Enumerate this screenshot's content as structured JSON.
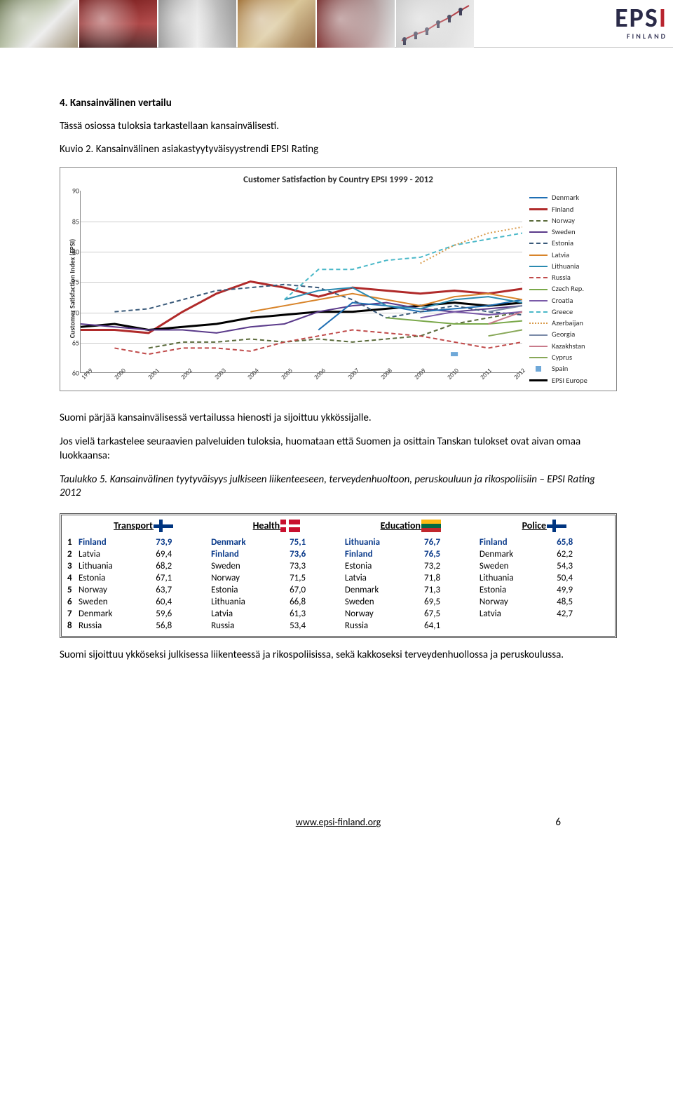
{
  "logo": {
    "letters": "EPS",
    "red_letter": "I",
    "sub": "FINLAND"
  },
  "section_heading": "4.  Kansainvälinen vertailu",
  "intro_para": "Tässä osiossa tuloksia tarkastellaan kansainvälisesti.",
  "kuvio_line": "Kuvio 2. Kansainvälinen asiakastyytyväisyystrendi EPSI Rating",
  "chart": {
    "title": "Customer Satisfaction by Country EPSI 1999 - 2012",
    "ylabel": "Customer Satisfaction Index (EPSI)",
    "ylim": [
      60,
      90
    ],
    "ytick_step": 5,
    "years": [
      "1999",
      "2000",
      "2001",
      "2002",
      "2003",
      "2004",
      "2005",
      "2006",
      "2007",
      "2008",
      "2009",
      "2010",
      "2011",
      "2012"
    ],
    "grid_color": "#cccccc",
    "border_color": "#888888",
    "legend": [
      {
        "label": "Denmark",
        "color": "#1f6fb4",
        "style": "solid",
        "width": 2
      },
      {
        "label": "Finland",
        "color": "#b02a2a",
        "style": "solid",
        "width": 3
      },
      {
        "label": "Norway",
        "color": "#5a6a3a",
        "style": "dash",
        "width": 2
      },
      {
        "label": "Sweden",
        "color": "#5a3a8a",
        "style": "solid",
        "width": 2
      },
      {
        "label": "Estonia",
        "color": "#3a5a7a",
        "style": "dash",
        "width": 2
      },
      {
        "label": "Latvia",
        "color": "#d8842a",
        "style": "solid",
        "width": 2
      },
      {
        "label": "Lithuania",
        "color": "#2a8ab0",
        "style": "solid",
        "width": 2
      },
      {
        "label": "Russia",
        "color": "#c04a4a",
        "style": "dash",
        "width": 2
      },
      {
        "label": "Czech Rep.",
        "color": "#7aa84a",
        "style": "solid",
        "width": 2
      },
      {
        "label": "Croatia",
        "color": "#7a5aa8",
        "style": "solid",
        "width": 2
      },
      {
        "label": "Greece",
        "color": "#4ab8c8",
        "style": "dash",
        "width": 2
      },
      {
        "label": "Azerbaijan",
        "color": "#d89a4a",
        "style": "dot",
        "width": 2
      },
      {
        "label": "Georgia",
        "color": "#7a8aa8",
        "style": "solid",
        "width": 2
      },
      {
        "label": "Kazakhstan",
        "color": "#c87a8a",
        "style": "solid",
        "width": 2
      },
      {
        "label": "Cyprus",
        "color": "#88a858",
        "style": "solid",
        "width": 2
      },
      {
        "label": "Spain",
        "color": "#6fa8d8",
        "style": "square",
        "width": 0
      },
      {
        "label": "EPSI Europe",
        "color": "#000000",
        "style": "solid",
        "width": 3
      }
    ],
    "series": {
      "Finland": [
        67,
        67,
        66.5,
        70,
        73,
        75,
        74,
        72.5,
        74,
        73.5,
        73,
        73.5,
        73,
        73.8
      ],
      "EPSI": [
        67.5,
        68,
        67,
        67.5,
        68,
        69,
        69.5,
        70,
        70,
        70.5,
        71,
        71.5,
        71,
        71.5
      ],
      "Sweden": [
        68,
        67.5,
        67,
        67,
        66.5,
        67.5,
        68,
        70,
        71,
        71.5,
        70.5,
        70,
        70.5,
        71
      ],
      "Denmark": [
        null,
        null,
        null,
        null,
        null,
        null,
        null,
        67,
        71.5,
        71,
        70,
        70.5,
        71,
        72
      ],
      "Norway": [
        null,
        null,
        64,
        65,
        65,
        65.5,
        65,
        65.5,
        65,
        65.5,
        66,
        68,
        69,
        70
      ],
      "Estonia": [
        null,
        70,
        70.5,
        72,
        73.5,
        74,
        74.5,
        74,
        72,
        69,
        70,
        71,
        70,
        69.5
      ],
      "Latvia": [
        null,
        null,
        null,
        null,
        null,
        70,
        71,
        72,
        73,
        72,
        71,
        72.5,
        73,
        72
      ],
      "Lithuania": [
        null,
        null,
        null,
        null,
        null,
        null,
        72,
        73.5,
        74,
        71,
        70.5,
        72,
        72.5,
        71.5
      ],
      "Russia": [
        null,
        64,
        63,
        64,
        64,
        63.5,
        65,
        66,
        67,
        66.5,
        66,
        65,
        64,
        65
      ],
      "Greece": [
        null,
        null,
        null,
        null,
        null,
        null,
        72,
        77,
        77,
        78.5,
        79,
        81,
        82,
        83
      ],
      "Azerbaijan": [
        null,
        null,
        null,
        null,
        null,
        null,
        null,
        null,
        null,
        null,
        78,
        81,
        83,
        84
      ],
      "Croatia": [
        null,
        null,
        null,
        null,
        null,
        null,
        null,
        null,
        null,
        null,
        69,
        70,
        69.5,
        70
      ],
      "Czech": [
        null,
        null,
        null,
        null,
        null,
        null,
        null,
        null,
        null,
        69,
        68.5,
        68,
        68,
        68.5
      ],
      "Georgia": [
        null,
        null,
        null,
        null,
        null,
        null,
        null,
        null,
        null,
        null,
        null,
        null,
        70,
        71
      ],
      "Kazakhstan": [
        null,
        null,
        null,
        null,
        null,
        null,
        null,
        null,
        null,
        null,
        null,
        null,
        68,
        70
      ],
      "Cyprus": [
        null,
        null,
        null,
        null,
        null,
        null,
        null,
        null,
        null,
        null,
        null,
        null,
        66,
        67
      ],
      "Spain": [
        null,
        null,
        null,
        null,
        null,
        null,
        null,
        null,
        null,
        null,
        null,
        63,
        null,
        null
      ]
    }
  },
  "para_after_chart": "Suomi pärjää kansainvälisessä vertailussa hienosti ja sijoittuu ykkössijalle.",
  "para_before_table": "Jos vielä tarkastelee seuraavien palveluiden tuloksia, huomataan että Suomen ja osittain Tanskan tulokset ovat aivan omaa luokkaansa:",
  "table_title": "Taulukko 5. Kansainvälinen tyytyväisyys julkiseen liikenteeseen, terveydenhuoltoon, peruskouluun ja rikospoliisiin – EPSI Rating 2012",
  "rank_headers": [
    "Transport",
    "Health",
    "Education",
    "Police"
  ],
  "rank_flags": [
    "fin",
    "den",
    "ltu",
    "fin"
  ],
  "ranks": [
    {
      "n": 1,
      "cols": [
        [
          "Finland",
          "73,9",
          true
        ],
        [
          "Denmark",
          "75,1",
          true
        ],
        [
          "Lithuania",
          "76,7",
          true
        ],
        [
          "Finland",
          "65,8",
          true
        ]
      ]
    },
    {
      "n": 2,
      "cols": [
        [
          "Latvia",
          "69,4",
          false
        ],
        [
          "Finland",
          "73,6",
          true
        ],
        [
          "Finland",
          "76,5",
          true
        ],
        [
          "Denmark",
          "62,2",
          false
        ]
      ]
    },
    {
      "n": 3,
      "cols": [
        [
          "Lithuania",
          "68,2",
          false
        ],
        [
          "Sweden",
          "73,3",
          false
        ],
        [
          "Estonia",
          "73,2",
          false
        ],
        [
          "Sweden",
          "54,3",
          false
        ]
      ]
    },
    {
      "n": 4,
      "cols": [
        [
          "Estonia",
          "67,1",
          false
        ],
        [
          "Norway",
          "71,5",
          false
        ],
        [
          "Latvia",
          "71,8",
          false
        ],
        [
          "Lithuania",
          "50,4",
          false
        ]
      ]
    },
    {
      "n": 5,
      "cols": [
        [
          "Norway",
          "63,7",
          false
        ],
        [
          "Estonia",
          "67,0",
          false
        ],
        [
          "Denmark",
          "71,3",
          false
        ],
        [
          "Estonia",
          "49,9",
          false
        ]
      ]
    },
    {
      "n": 6,
      "cols": [
        [
          "Sweden",
          "60,4",
          false
        ],
        [
          "Lithuania",
          "66,8",
          false
        ],
        [
          "Sweden",
          "69,5",
          false
        ],
        [
          "Norway",
          "48,5",
          false
        ]
      ]
    },
    {
      "n": 7,
      "cols": [
        [
          "Denmark",
          "59,6",
          false
        ],
        [
          "Latvia",
          "61,3",
          false
        ],
        [
          "Norway",
          "67,5",
          false
        ],
        [
          "Latvia",
          "42,7",
          false
        ]
      ]
    },
    {
      "n": 8,
      "cols": [
        [
          "Russia",
          "56,8",
          false
        ],
        [
          "Russia",
          "53,4",
          false
        ],
        [
          "Russia",
          "64,1",
          false
        ],
        [
          "",
          "",
          false
        ]
      ]
    }
  ],
  "closing_para": "Suomi sijoittuu ykköseksi julkisessa liikenteessä ja rikospoliisissa, sekä kakkoseksi terveydenhuollossa ja peruskoulussa.",
  "footer_url": "www.epsi-finland.org",
  "page_number": "6"
}
